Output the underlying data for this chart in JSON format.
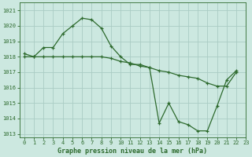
{
  "title": "Graphe pression niveau de la mer (hPa)",
  "bg_color": "#cce8e0",
  "line_color": "#2d6a2d",
  "grid_color": "#aaccc4",
  "series1_x": [
    0,
    1,
    2,
    3,
    4,
    5,
    6,
    7,
    8,
    9,
    10,
    11,
    12,
    13,
    14,
    15,
    16,
    17,
    18,
    19,
    20,
    21,
    22
  ],
  "series1_y": [
    1018.2,
    1018.0,
    1018.6,
    1018.6,
    1019.5,
    1020.0,
    1020.5,
    1020.4,
    1019.85,
    1018.7,
    1018.0,
    1017.5,
    1017.5,
    1017.3,
    1013.7,
    1015.0,
    1013.8,
    1013.6,
    1013.2,
    1013.2,
    1014.8,
    1016.5,
    1017.1
  ],
  "series2_x": [
    0,
    1,
    2,
    3,
    4,
    5,
    6,
    7,
    8,
    9,
    10,
    11,
    12,
    13,
    14,
    15,
    16,
    17,
    18,
    19,
    20,
    21,
    22
  ],
  "series2_y": [
    1018.0,
    1018.0,
    1018.0,
    1018.0,
    1018.0,
    1018.0,
    1018.0,
    1018.0,
    1018.0,
    1017.9,
    1017.7,
    1017.6,
    1017.4,
    1017.3,
    1017.1,
    1017.0,
    1016.8,
    1016.7,
    1016.6,
    1016.3,
    1016.1,
    1016.1,
    1017.0
  ],
  "xlim": [
    -0.5,
    23.0
  ],
  "ylim": [
    1012.8,
    1021.5
  ],
  "yticks": [
    1013,
    1014,
    1015,
    1016,
    1017,
    1018,
    1019,
    1020,
    1021
  ],
  "xticks": [
    0,
    1,
    2,
    3,
    4,
    5,
    6,
    7,
    8,
    9,
    10,
    11,
    12,
    13,
    14,
    15,
    16,
    17,
    18,
    19,
    20,
    21,
    22,
    23
  ],
  "xlabel_fontsize": 6.0,
  "tick_fontsize": 5.0,
  "linewidth": 0.9,
  "markersize": 3.5
}
